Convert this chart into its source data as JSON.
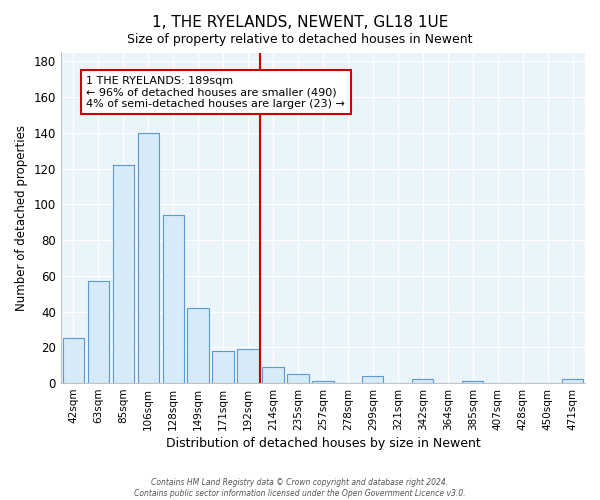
{
  "title": "1, THE RYELANDS, NEWENT, GL18 1UE",
  "subtitle": "Size of property relative to detached houses in Newent",
  "xlabel": "Distribution of detached houses by size in Newent",
  "ylabel": "Number of detached properties",
  "bar_labels": [
    "42sqm",
    "63sqm",
    "85sqm",
    "106sqm",
    "128sqm",
    "149sqm",
    "171sqm",
    "192sqm",
    "214sqm",
    "235sqm",
    "257sqm",
    "278sqm",
    "299sqm",
    "321sqm",
    "342sqm",
    "364sqm",
    "385sqm",
    "407sqm",
    "428sqm",
    "450sqm",
    "471sqm"
  ],
  "bar_heights": [
    25,
    57,
    122,
    140,
    94,
    42,
    18,
    19,
    9,
    5,
    1,
    0,
    4,
    0,
    2,
    0,
    1,
    0,
    0,
    0,
    2
  ],
  "bar_color": "#d6eaf8",
  "bar_edge_color": "#5b9bd5",
  "vline_x_idx": 7.5,
  "vline_color": "#cc0000",
  "annotation_line1": "1 THE RYELANDS: 189sqm",
  "annotation_line2": "← 96% of detached houses are smaller (490)",
  "annotation_line3": "4% of semi-detached houses are larger (23) →",
  "annotation_box_color": "white",
  "annotation_box_edge": "#cc0000",
  "ylim": [
    0,
    185
  ],
  "yticks": [
    0,
    20,
    40,
    60,
    80,
    100,
    120,
    140,
    160,
    180
  ],
  "footer_line1": "Contains HM Land Registry data © Crown copyright and database right 2024.",
  "footer_line2": "Contains public sector information licensed under the Open Government Licence v3.0.",
  "bg_color": "#ffffff",
  "plot_bg_color": "#eaf4fb",
  "grid_color": "#ffffff",
  "title_fontsize": 11,
  "subtitle_fontsize": 9
}
